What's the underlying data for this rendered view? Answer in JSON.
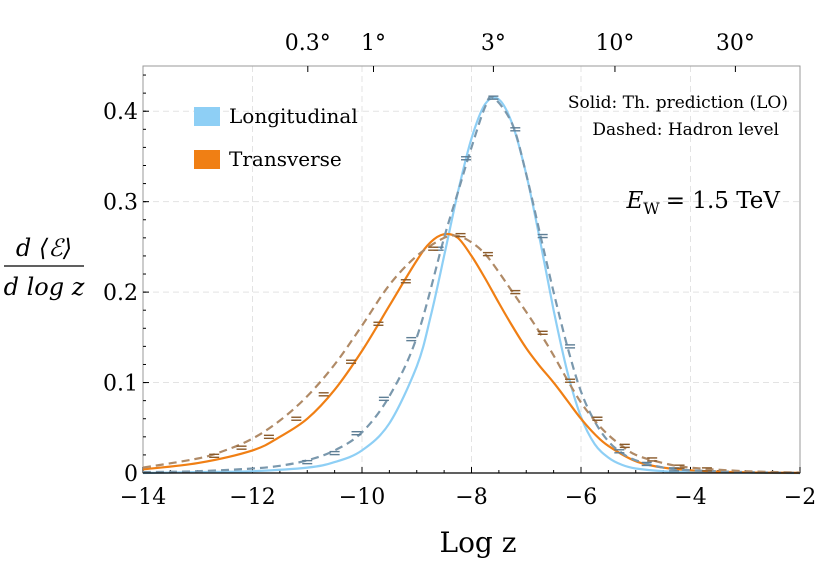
{
  "chart_data": {
    "type": "line",
    "xlabel": "Log z",
    "ylabel_numerator": "d ⟨ℰ⟩",
    "ylabel_denominator": "d log z",
    "xlim": [
      -14,
      -2
    ],
    "ylim": [
      0,
      0.45
    ],
    "x_ticks": [
      -14,
      -12,
      -10,
      -8,
      -6,
      -4,
      -2
    ],
    "x_tick_labels": [
      "−14",
      "−12",
      "−10",
      "−8",
      "−6",
      "−4",
      "−2"
    ],
    "y_ticks": [
      0,
      0.1,
      0.2,
      0.3,
      0.4
    ],
    "y_tick_labels": [
      "0",
      "0.1",
      "0.2",
      "0.3",
      "0.4"
    ],
    "top_ticks": [
      {
        "x": -10.99,
        "label": "0.3°"
      },
      {
        "x": -9.79,
        "label": "1°"
      },
      {
        "x": -7.6,
        "label": "3°"
      },
      {
        "x": -5.38,
        "label": "10°"
      },
      {
        "x": -3.18,
        "label": "30°"
      }
    ],
    "grid": true,
    "legend_position": "top-left",
    "annotation_lines": [
      "Solid: Th. prediction (LO)",
      "Dashed: Hadron level"
    ],
    "energy_label": "E_W = 1.5 TeV",
    "energy_label_main": "E",
    "energy_label_sub": "W",
    "energy_label_value": "= 1.5 TeV",
    "series": [
      {
        "name": "Longitudinal",
        "style": "solid",
        "color": "#8ecff5",
        "x": [
          -14,
          -13,
          -12,
          -11,
          -10.5,
          -10,
          -9.5,
          -9,
          -8.75,
          -8.5,
          -8.25,
          -8,
          -7.75,
          -7.5,
          -7.25,
          -7,
          -6.75,
          -6.5,
          -6.25,
          -6,
          -5.75,
          -5.5,
          -5.25,
          -5,
          -4.5,
          -4,
          -3,
          -2
        ],
        "y": [
          0,
          0.001,
          0.002,
          0.006,
          0.012,
          0.025,
          0.055,
          0.118,
          0.172,
          0.24,
          0.31,
          0.37,
          0.408,
          0.413,
          0.385,
          0.33,
          0.258,
          0.18,
          0.112,
          0.062,
          0.032,
          0.017,
          0.009,
          0.005,
          0.002,
          0.001,
          0.0003,
          0
        ]
      },
      {
        "name": "Transverse",
        "style": "solid",
        "color": "#f07f14",
        "x": [
          -14,
          -13,
          -12,
          -11.5,
          -11,
          -10.5,
          -10,
          -9.5,
          -9,
          -8.75,
          -8.5,
          -8.25,
          -8,
          -7.75,
          -7.5,
          -7.25,
          -7,
          -6.75,
          -6.5,
          -6.25,
          -6,
          -5.75,
          -5.5,
          -5,
          -4.5,
          -4,
          -3,
          -2
        ],
        "y": [
          0.004,
          0.011,
          0.025,
          0.04,
          0.06,
          0.092,
          0.135,
          0.185,
          0.235,
          0.255,
          0.264,
          0.26,
          0.24,
          0.215,
          0.188,
          0.162,
          0.138,
          0.118,
          0.1,
          0.08,
          0.06,
          0.043,
          0.03,
          0.013,
          0.006,
          0.003,
          0.0008,
          0.0002
        ]
      },
      {
        "name": "",
        "style": "dashed",
        "color": "#7a98ad",
        "x": [
          -14,
          -13,
          -12,
          -11.5,
          -11,
          -10.5,
          -10,
          -9.5,
          -9,
          -8.5,
          -8.25,
          -8,
          -7.75,
          -7.6,
          -7.25,
          -7,
          -6.75,
          -6.5,
          -6.25,
          -6,
          -5.75,
          -5.5,
          -5.25,
          -5,
          -4.5,
          -4,
          -3,
          -2
        ],
        "y": [
          0.001,
          0.002,
          0.005,
          0.008,
          0.014,
          0.025,
          0.045,
          0.085,
          0.15,
          0.26,
          0.31,
          0.36,
          0.405,
          0.415,
          0.385,
          0.33,
          0.265,
          0.2,
          0.14,
          0.09,
          0.057,
          0.035,
          0.022,
          0.014,
          0.006,
          0.003,
          0.001,
          0
        ]
      },
      {
        "name": "",
        "style": "dashed",
        "color": "#b08a66",
        "x": [
          -14,
          -13,
          -12.5,
          -12,
          -11.5,
          -11,
          -10.5,
          -10,
          -9.5,
          -9,
          -8.5,
          -8.25,
          -8,
          -7.75,
          -7.5,
          -7.25,
          -7,
          -6.75,
          -6.5,
          -6.25,
          -6,
          -5.75,
          -5.5,
          -5.25,
          -5,
          -4.5,
          -4,
          -3,
          -2
        ],
        "y": [
          0.006,
          0.016,
          0.025,
          0.038,
          0.058,
          0.085,
          0.12,
          0.163,
          0.208,
          0.24,
          0.26,
          0.262,
          0.255,
          0.242,
          0.222,
          0.2,
          0.178,
          0.155,
          0.13,
          0.103,
          0.078,
          0.058,
          0.042,
          0.03,
          0.02,
          0.011,
          0.006,
          0.002,
          0.0005
        ]
      }
    ],
    "error_points": {
      "longitudinal": [
        {
          "x": -11.0,
          "y": 0.012
        },
        {
          "x": -10.5,
          "y": 0.022
        },
        {
          "x": -10.1,
          "y": 0.044
        },
        {
          "x": -9.6,
          "y": 0.082
        },
        {
          "x": -9.1,
          "y": 0.148
        },
        {
          "x": -8.6,
          "y": 0.248
        },
        {
          "x": -8.1,
          "y": 0.348
        },
        {
          "x": -7.6,
          "y": 0.415
        },
        {
          "x": -7.2,
          "y": 0.38
        },
        {
          "x": -6.7,
          "y": 0.262
        },
        {
          "x": -6.2,
          "y": 0.14
        },
        {
          "x": -5.7,
          "y": 0.06
        },
        {
          "x": -5.3,
          "y": 0.024
        },
        {
          "x": -4.8,
          "y": 0.01
        },
        {
          "x": -4.3,
          "y": 0.004
        }
      ],
      "transverse": [
        {
          "x": -12.7,
          "y": 0.019
        },
        {
          "x": -12.2,
          "y": 0.028
        },
        {
          "x": -11.7,
          "y": 0.04
        },
        {
          "x": -11.2,
          "y": 0.06
        },
        {
          "x": -10.7,
          "y": 0.087
        },
        {
          "x": -10.2,
          "y": 0.123
        },
        {
          "x": -9.7,
          "y": 0.165
        },
        {
          "x": -9.2,
          "y": 0.212
        },
        {
          "x": -8.7,
          "y": 0.248
        },
        {
          "x": -8.2,
          "y": 0.263
        },
        {
          "x": -7.7,
          "y": 0.242
        },
        {
          "x": -7.2,
          "y": 0.2
        },
        {
          "x": -6.7,
          "y": 0.155
        },
        {
          "x": -6.2,
          "y": 0.102
        },
        {
          "x": -5.7,
          "y": 0.06
        },
        {
          "x": -5.2,
          "y": 0.03
        },
        {
          "x": -4.7,
          "y": 0.015
        },
        {
          "x": -4.2,
          "y": 0.007
        },
        {
          "x": -3.7,
          "y": 0.004
        }
      ]
    }
  }
}
